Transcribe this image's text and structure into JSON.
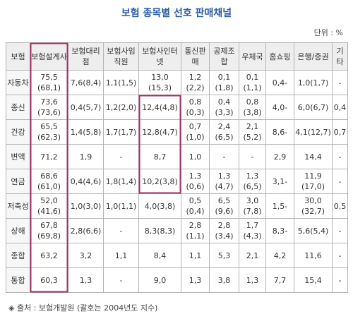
{
  "header": {
    "title": "보험 종목별 선호 판매채널",
    "unit": "단위 : %"
  },
  "table": {
    "columns": [
      "보험",
      "보험설계사",
      "보험대리점",
      "보험사임직원",
      "보험사인터넷",
      "통신판매",
      "공제조합",
      "우체국",
      "홈쇼핑",
      "은행/증권",
      "기타"
    ],
    "rows": [
      [
        "자동차",
        "75,5(68,1)",
        "7,6(8,4)",
        "1,1(1,5)",
        "13,0(15,3)",
        "1,2(2,2)",
        "0,1(1,8)",
        "0,1(1,1)",
        "0,4-",
        "1,0(1,7)",
        "-"
      ],
      [
        "종신",
        "73,6(73,6)",
        "0,4(5,7)",
        "1,2(2,0)",
        "12,4(4,8)",
        "0,8(0,3)",
        "0,4(3,3)",
        "0,8(3,8)",
        "4,0-",
        "6,0(6,7)",
        "0,4"
      ],
      [
        "건강",
        "65,5(62,3)",
        "1,4(5,8)",
        "1,7(1,7)",
        "12,8(4,7)",
        "0,7(1,0)",
        "2,4(6,5)",
        "2,1(5,2)",
        "8,6-",
        "4,1(12,7)",
        "0,7"
      ],
      [
        "변액",
        "71,2",
        "1,9",
        "-",
        "8,7",
        "1,0",
        "-",
        "-",
        "2,9",
        "14,4",
        "-"
      ],
      [
        "연금",
        "68,6(61,0)",
        "0,4(4,6)",
        "1,8(1,4)",
        "10,2(3,8)",
        "1,3(0,6)",
        "1,3(4,7)",
        "1,3(6,5)",
        "3,1-",
        "11,9(17,0)",
        "-"
      ],
      [
        "저축성",
        "52,0(41,6)",
        "1,0(3,0)",
        "1,0(1,1)",
        "4,0(3,8)",
        "0,5(0,4)",
        "6,5(9,6)",
        "3,0(7,8)",
        "1,5-",
        "30,0(32,7)",
        "0,5"
      ],
      [
        "상해",
        "67,8(69,8)",
        "2,8(6,6)",
        "-",
        "8,3(8,3)",
        "2,8(1,1)",
        "2,8(3,4)",
        "1,7(4,3)",
        "8,3-",
        "5,6(5,4)",
        "-"
      ],
      [
        "종합",
        "63,2",
        "3,2",
        "1,1",
        "8,4",
        "1,1",
        "5,3",
        "2,1",
        "4,2",
        "11,6",
        "-"
      ],
      [
        "통합",
        "60,3",
        "1,3",
        "-",
        "9,0",
        "1,3",
        "3,8",
        "1,3",
        "7,7",
        "15,4",
        "-"
      ]
    ]
  },
  "footer": {
    "note": "◈ 출처 : 보험개발원 (괄호는 2004년도 지수)"
  }
}
